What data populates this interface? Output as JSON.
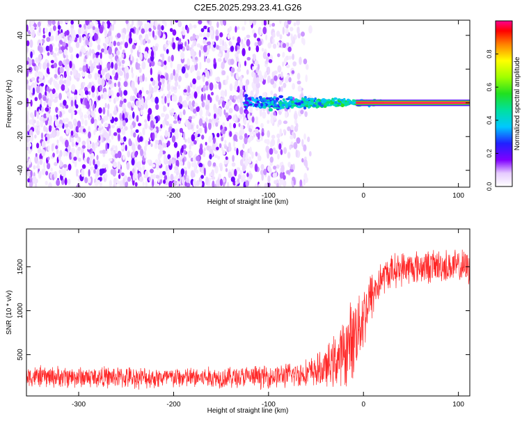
{
  "title": "C2E5.2025.293.23.41.G26",
  "chart_data": [
    {
      "type": "heatmap",
      "xlabel": "Height of straight line (km)",
      "ylabel": "Frequency (Hz)",
      "xlim": [
        -355,
        112
      ],
      "ylim": [
        -50,
        49
      ],
      "xticks": [
        -300,
        -200,
        -100,
        0,
        100
      ],
      "yticks": [
        -40,
        -20,
        0,
        20,
        40
      ],
      "grid": false,
      "colorbar": {
        "label": "Normalized spectral amplitude",
        "range": [
          0,
          1
        ],
        "ticks": [
          0.0,
          0.2,
          0.4,
          0.6,
          0.8
        ]
      },
      "regions": [
        {
          "x": [
            -355,
            -55
          ],
          "amplitude": "scattered low (0.05-0.2) across all frequencies"
        },
        {
          "x": [
            -125,
            20
          ],
          "freq_center": 0,
          "freq_halfwidth": 6,
          "amplitude": "0.2-0.6 concentrating near 0 Hz"
        },
        {
          "x": [
            -10,
            112
          ],
          "freq_center": 0,
          "freq_halfwidth": 2,
          "amplitude": "~1.0 narrow line at 0 Hz"
        }
      ]
    },
    {
      "type": "line",
      "xlabel": "Height of straight line (km)",
      "ylabel": "SNR (10 * v/v)",
      "xlim": [
        -355,
        112
      ],
      "ylim": [
        30,
        1930
      ],
      "xticks": [
        -300,
        -200,
        -100,
        0,
        100
      ],
      "yticks": [
        500,
        1000,
        1500
      ],
      "grid": false,
      "series": [
        {
          "color": "#ff0000",
          "x": [
            -355,
            -300,
            -250,
            -200,
            -150,
            -100,
            -80,
            -60,
            -40,
            -20,
            -10,
            0,
            10,
            20,
            30,
            40,
            60,
            80,
            100,
            112
          ],
          "mean": [
            250,
            245,
            240,
            235,
            240,
            250,
            265,
            290,
            340,
            520,
            720,
            950,
            1200,
            1380,
            1450,
            1480,
            1500,
            1510,
            1500,
            1490
          ],
          "spread": [
            140,
            140,
            140,
            140,
            140,
            150,
            160,
            180,
            250,
            450,
            550,
            450,
            330,
            220,
            220,
            220,
            220,
            220,
            220,
            220
          ]
        }
      ]
    }
  ]
}
